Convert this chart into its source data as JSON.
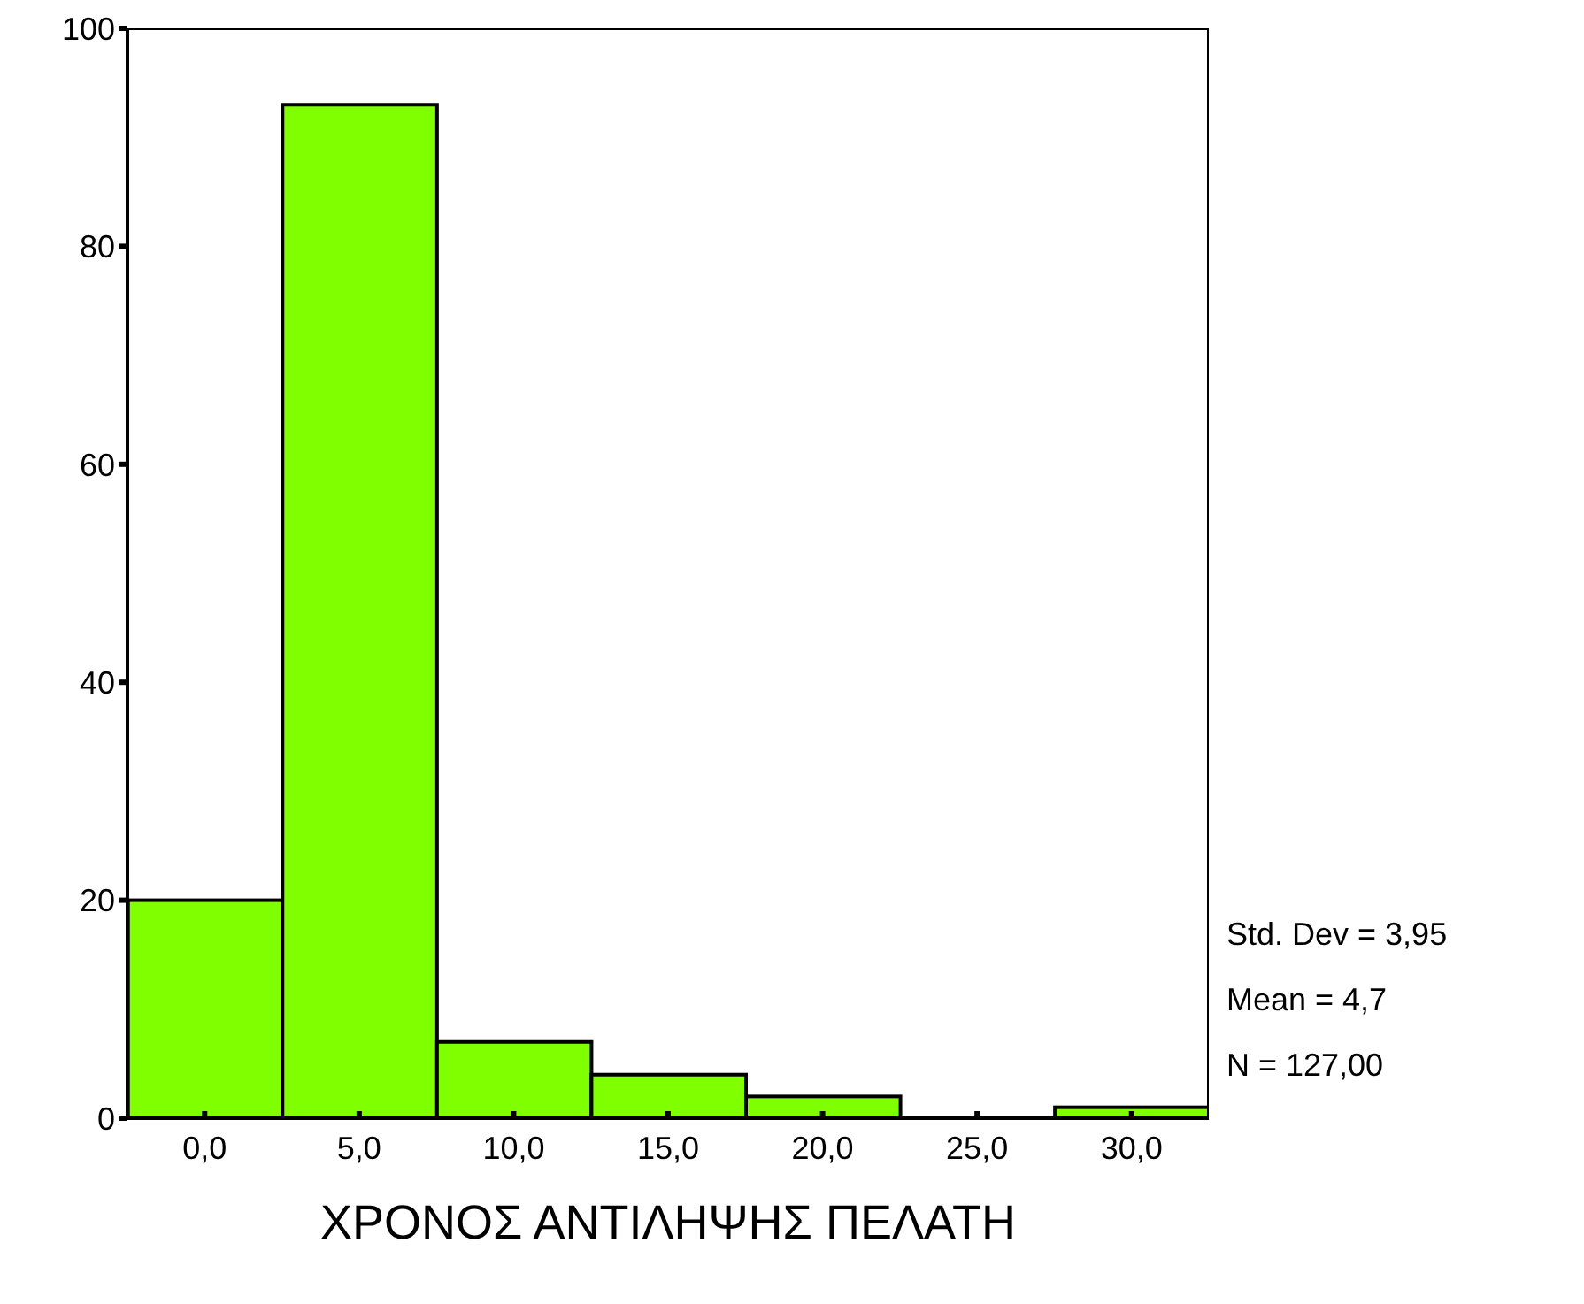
{
  "chart_data": {
    "type": "histogram",
    "xlabel": "ΧΡΟΝΟΣ ΑΝΤΙΛΗΨΗΣ ΠΕΛΑΤΗ",
    "bins": [
      -2.5,
      2.5,
      7.5,
      12.5,
      17.5,
      22.5,
      27.5,
      32.5
    ],
    "values": [
      20,
      93,
      7,
      4,
      2,
      0,
      1
    ],
    "color": "#80ff00",
    "xlim": [
      -2.5,
      32.5
    ],
    "xticks": [
      {
        "value": 0,
        "label": "0,0"
      },
      {
        "value": 5,
        "label": "5,0"
      },
      {
        "value": 10,
        "label": "10,0"
      },
      {
        "value": 15,
        "label": "15,0"
      },
      {
        "value": 20,
        "label": "20,0"
      },
      {
        "value": 25,
        "label": "25,0"
      },
      {
        "value": 30,
        "label": "30,0"
      }
    ],
    "ylim": [
      0,
      100
    ],
    "yticks": [
      0,
      20,
      40,
      60,
      80,
      100
    ],
    "grid": false,
    "annotations": [
      "Std. Dev = 3,95",
      "Mean = 4,7",
      "N = 127,00"
    ]
  }
}
